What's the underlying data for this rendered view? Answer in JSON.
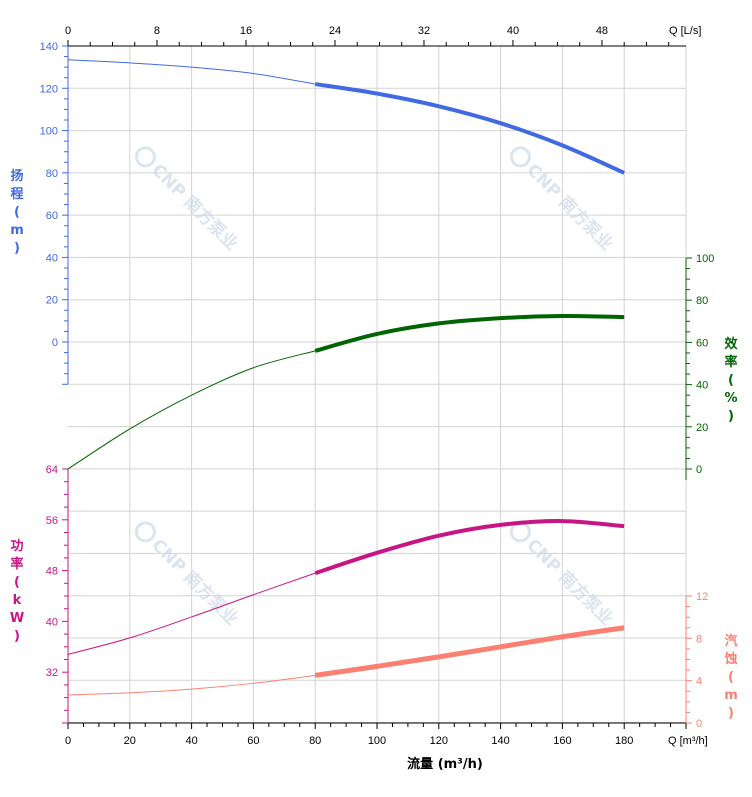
{
  "chart_data": {
    "type": "line",
    "watermark": "CNP 南方泵业",
    "x_bottom": {
      "label": "流量 (m³/h)",
      "unit_label": "Q [m³/h]",
      "range": [
        0,
        200
      ],
      "ticks": [
        0,
        20,
        40,
        60,
        80,
        100,
        120,
        140,
        160,
        180
      ],
      "tick_labels": [
        "0",
        "20",
        "40",
        "60",
        "80",
        "100",
        "120",
        "140",
        "160",
        "180"
      ]
    },
    "x_top": {
      "unit_label": "Q [L/s]",
      "ticks": [
        0,
        8,
        16,
        24,
        32,
        40,
        48
      ],
      "tick_labels": [
        "0",
        "8",
        "16",
        "24",
        "32",
        "40",
        "48"
      ]
    },
    "axes": {
      "head": {
        "label": "扬程(m)",
        "range": [
          -20,
          140
        ],
        "ticks": [
          0,
          20,
          40,
          60,
          80,
          100,
          120,
          140
        ],
        "tick_labels": [
          "0",
          "20",
          "40",
          "60",
          "80",
          "100",
          "120",
          "140"
        ],
        "color": "#4169e1"
      },
      "efficiency": {
        "label": "效率(%)",
        "range": [
          0,
          100
        ],
        "ticks": [
          0,
          20,
          40,
          60,
          80,
          100
        ],
        "tick_labels": [
          "0",
          "20",
          "40",
          "60",
          "80",
          "100"
        ],
        "color": "#006400"
      },
      "power": {
        "label": "功率(kW)",
        "range": [
          24,
          64
        ],
        "ticks": [
          32,
          40,
          48,
          56,
          64
        ],
        "tick_labels": [
          "32",
          "40",
          "48",
          "56",
          "64"
        ],
        "color": "#c71585"
      },
      "npsh": {
        "label": "汽蚀(m)",
        "range": [
          0,
          12
        ],
        "ticks": [
          0,
          4,
          8,
          12
        ],
        "tick_labels": [
          "0",
          "4",
          "8",
          "12"
        ],
        "color": "#fa8072"
      }
    },
    "operating_range": [
      80,
      180
    ],
    "series": [
      {
        "key": "head",
        "axis": "head",
        "color": "#4169e1",
        "points": [
          [
            0,
            133.5
          ],
          [
            20,
            132.0
          ],
          [
            40,
            130.0
          ],
          [
            60,
            127.0
          ],
          [
            80,
            122.0
          ],
          [
            100,
            117.5
          ],
          [
            120,
            111.5
          ],
          [
            140,
            103.5
          ],
          [
            160,
            93.0
          ],
          [
            180,
            80.0
          ]
        ]
      },
      {
        "key": "efficiency",
        "axis": "efficiency",
        "color": "#006400",
        "points": [
          [
            0,
            0
          ],
          [
            20,
            19
          ],
          [
            40,
            35
          ],
          [
            60,
            48
          ],
          [
            80,
            56
          ],
          [
            100,
            64
          ],
          [
            120,
            69
          ],
          [
            140,
            71.5
          ],
          [
            160,
            72.5
          ],
          [
            180,
            72
          ]
        ]
      },
      {
        "key": "power",
        "axis": "power",
        "color": "#c71585",
        "points": [
          [
            0,
            34.8
          ],
          [
            20,
            37.4
          ],
          [
            40,
            40.7
          ],
          [
            60,
            44.2
          ],
          [
            80,
            47.6
          ],
          [
            100,
            50.8
          ],
          [
            120,
            53.5
          ],
          [
            140,
            55.2
          ],
          [
            160,
            55.8
          ],
          [
            180,
            55.0
          ]
        ]
      },
      {
        "key": "npsh",
        "axis": "npsh",
        "color": "#fa8072",
        "points": [
          [
            0,
            2.65
          ],
          [
            20,
            2.85
          ],
          [
            40,
            3.2
          ],
          [
            60,
            3.75
          ],
          [
            80,
            4.5
          ],
          [
            100,
            5.35
          ],
          [
            120,
            6.25
          ],
          [
            140,
            7.2
          ],
          [
            160,
            8.15
          ],
          [
            180,
            9.0
          ]
        ]
      }
    ]
  }
}
